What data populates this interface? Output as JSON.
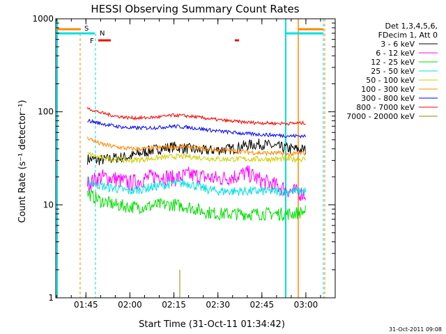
{
  "chart_data": {
    "type": "line",
    "title": "HESSI Observing Summary Count Rates",
    "xlabel": "Start Time (31-Oct-11 01:34:42)",
    "ylabel": "Count Rate (s⁻¹ detector⁻¹)",
    "y_scale": "log",
    "ylim": [
      1,
      1000
    ],
    "xlim": [
      "01:34:42",
      "03:10:00"
    ],
    "x_ticks": [
      "01:45",
      "02:00",
      "02:15",
      "02:30",
      "02:45",
      "03:00"
    ],
    "y_ticks": [
      "1",
      "10",
      "100",
      "1000"
    ],
    "grid": false,
    "legend_placement": "right",
    "legend_header": [
      "Det 1,3,4,5,6,",
      "FDecim 1, Att 0"
    ],
    "timestamp": "31-Oct-2011 09:08",
    "series": [
      {
        "name": "3 - 6 keV",
        "color": "#000000",
        "x": [
          "01:46",
          "01:50",
          "01:55",
          "02:00",
          "02:05",
          "02:10",
          "02:15",
          "02:20",
          "02:25",
          "02:30",
          "02:35",
          "02:40",
          "02:45",
          "02:50",
          "02:55",
          "03:00"
        ],
        "values": [
          31,
          30,
          32,
          33,
          37,
          40,
          42,
          40,
          38,
          39,
          40,
          44,
          45,
          42,
          40,
          39
        ]
      },
      {
        "name": "6 - 12 keV",
        "color": "#ff00ff",
        "x": [
          "01:46",
          "01:50",
          "01:55",
          "02:00",
          "02:05",
          "02:10",
          "02:15",
          "02:20",
          "02:25",
          "02:30",
          "02:35",
          "02:40",
          "02:45",
          "02:50",
          "02:55",
          "03:00"
        ],
        "values": [
          17,
          20,
          19,
          17,
          19,
          21,
          19,
          21,
          20,
          19,
          20,
          22,
          18,
          16,
          14,
          13
        ]
      },
      {
        "name": "12 - 25 keV",
        "color": "#00dd00",
        "x": [
          "01:46",
          "01:50",
          "01:55",
          "02:00",
          "02:05",
          "02:10",
          "02:15",
          "02:20",
          "02:25",
          "02:30",
          "02:35",
          "02:40",
          "02:45",
          "02:50",
          "02:55",
          "03:00"
        ],
        "values": [
          13,
          11,
          10,
          9.5,
          9.5,
          10,
          10,
          9.5,
          8.5,
          8,
          8,
          8,
          8,
          8,
          8,
          8.5
        ]
      },
      {
        "name": "25 - 50 keV",
        "color": "#00e0e0",
        "x": [
          "01:46",
          "01:50",
          "01:55",
          "02:00",
          "02:05",
          "02:10",
          "02:15",
          "02:20",
          "02:25",
          "02:30",
          "02:35",
          "02:40",
          "02:45",
          "02:50",
          "02:55",
          "03:00"
        ],
        "values": [
          18,
          16,
          15,
          14,
          15,
          16,
          17,
          17,
          15,
          14,
          14,
          14,
          14,
          14,
          14,
          14
        ]
      },
      {
        "name": "50 - 100 keV",
        "color": "#cccc00",
        "x": [
          "01:46",
          "01:50",
          "01:55",
          "02:00",
          "02:05",
          "02:10",
          "02:15",
          "02:20",
          "02:25",
          "02:30",
          "02:35",
          "02:40",
          "02:45",
          "02:50",
          "02:55",
          "03:00"
        ],
        "values": [
          35,
          32,
          31,
          30,
          31,
          32,
          33,
          33,
          32,
          31,
          31,
          31,
          31,
          31,
          31,
          31
        ]
      },
      {
        "name": "100 - 300 keV",
        "color": "#ff8800",
        "x": [
          "01:46",
          "01:50",
          "01:55",
          "02:00",
          "02:05",
          "02:10",
          "02:15",
          "02:20",
          "02:25",
          "02:30",
          "02:35",
          "02:40",
          "02:45",
          "02:50",
          "02:55",
          "03:00"
        ],
        "values": [
          52,
          45,
          42,
          40,
          40,
          41,
          42,
          42,
          40,
          39,
          38,
          37,
          36,
          36,
          35,
          36
        ]
      },
      {
        "name": "300 - 800 keV",
        "color": "#0000ff",
        "x": [
          "01:46",
          "01:50",
          "01:55",
          "02:00",
          "02:05",
          "02:10",
          "02:15",
          "02:20",
          "02:25",
          "02:30",
          "02:35",
          "02:40",
          "02:45",
          "02:50",
          "02:55",
          "03:00"
        ],
        "values": [
          80,
          75,
          70,
          67,
          67,
          68,
          70,
          68,
          65,
          62,
          60,
          58,
          57,
          56,
          55,
          55
        ]
      },
      {
        "name": "800 - 7000 keV",
        "color": "#ff0000",
        "x": [
          "01:46",
          "01:50",
          "01:55",
          "02:00",
          "02:05",
          "02:10",
          "02:15",
          "02:20",
          "02:25",
          "02:30",
          "02:35",
          "02:40",
          "02:45",
          "02:50",
          "02:55",
          "03:00"
        ],
        "values": [
          108,
          98,
          90,
          86,
          86,
          88,
          92,
          90,
          86,
          82,
          79,
          77,
          76,
          75,
          75,
          76
        ]
      },
      {
        "name": "7000 - 20000 keV",
        "color": "#888800",
        "x": [
          "02:17",
          "02:17"
        ],
        "values": [
          1,
          2
        ]
      }
    ],
    "markers": [
      {
        "label": "S",
        "color": "#ff8800"
      },
      {
        "label": "N",
        "color": "#00e0e0"
      },
      {
        "label": "F",
        "color": "#ff0000"
      }
    ]
  }
}
